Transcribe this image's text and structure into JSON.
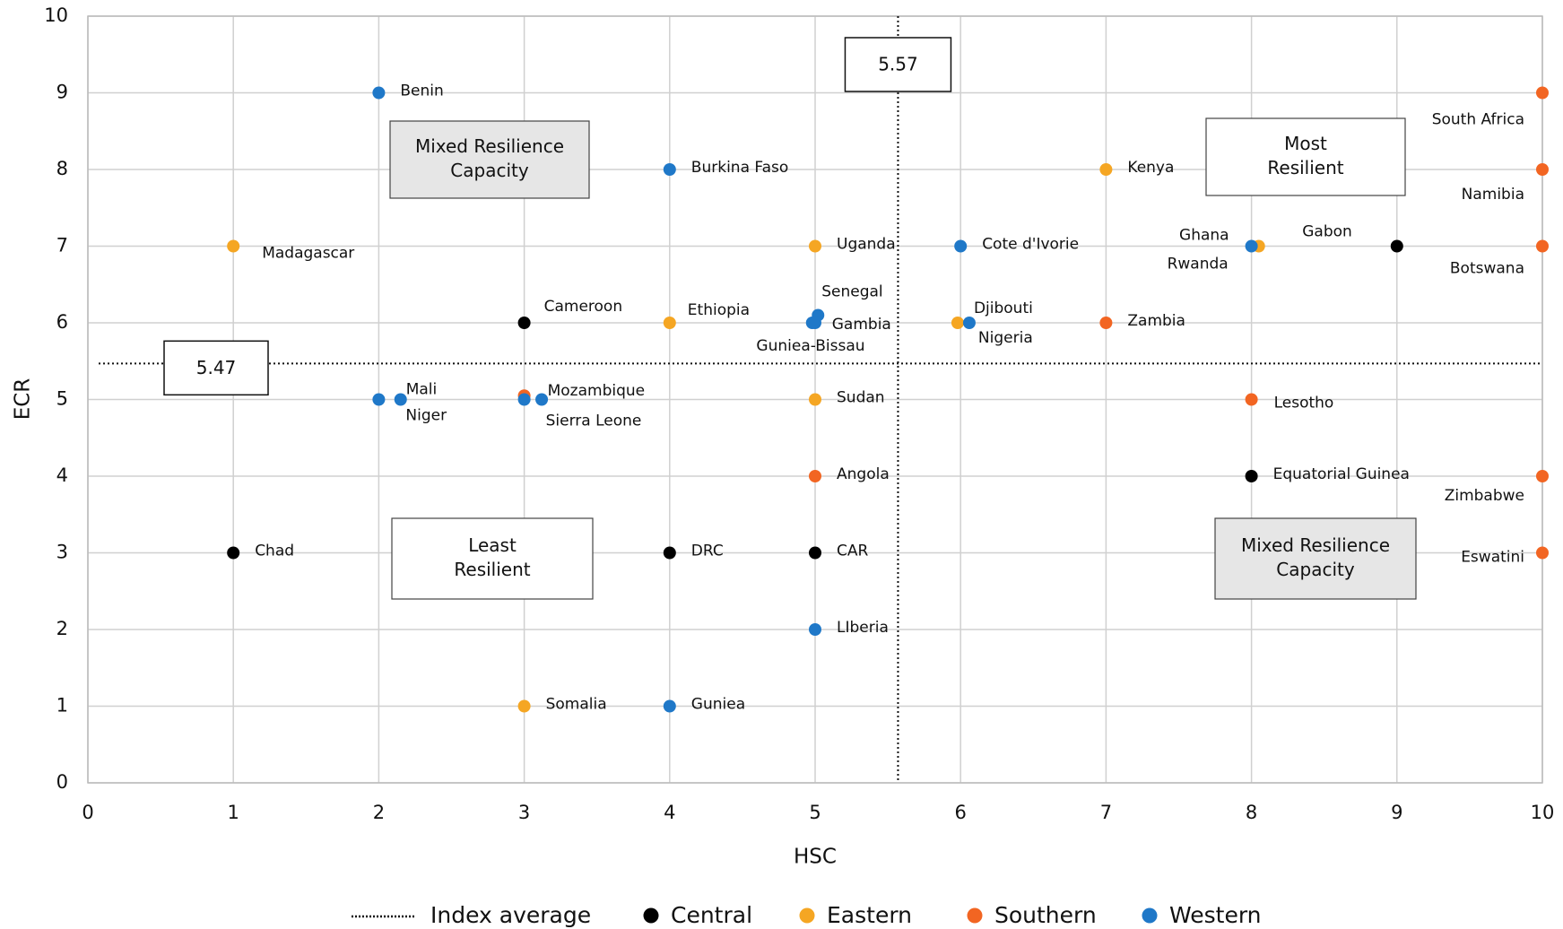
{
  "chart_data": {
    "type": "scatter",
    "xlabel": "HSC",
    "ylabel": "ECR",
    "xlim": [
      0,
      10
    ],
    "xticks": [
      0,
      1,
      2,
      3,
      4,
      5,
      6,
      7,
      8,
      9,
      10
    ],
    "ylim": [
      0,
      10
    ],
    "yticks": [
      0,
      1,
      2,
      3,
      4,
      5,
      6,
      7,
      8,
      9,
      10
    ],
    "grid": true,
    "reference_lines": {
      "name": "Index average",
      "x": 5.57,
      "y": 5.47
    },
    "series": [
      {
        "name": "Central",
        "color": "#000000",
        "x": [
          3,
          1,
          4,
          5,
          9,
          8
        ],
        "y": [
          6,
          3,
          3,
          3,
          7,
          4
        ],
        "labels": [
          "Cameroon",
          "Chad",
          "DRC",
          "CAR",
          "Gabon",
          "Equatorial Guinea"
        ]
      },
      {
        "name": "Eastern",
        "color": "#f5a623",
        "x": [
          1,
          5,
          4,
          7,
          5.98,
          5,
          3,
          8.05
        ],
        "y": [
          7,
          7,
          6,
          8,
          6,
          5,
          1,
          7
        ],
        "labels": [
          "Madagascar",
          "Uganda",
          "Ethiopia",
          "Kenya",
          "Djibouti",
          "Sudan",
          "Somalia",
          "Rwanda"
        ]
      },
      {
        "name": "Southern",
        "color": "#f26522",
        "x": [
          10,
          10,
          10,
          7,
          3,
          8,
          5,
          10,
          10
        ],
        "y": [
          9,
          8,
          7,
          6,
          5.05,
          5,
          4,
          4,
          3
        ],
        "labels": [
          "South Africa",
          "Namibia",
          "Botswana",
          "Zambia",
          "Mozambique",
          "Lesotho",
          "Angola",
          "Zimbabwe",
          "Eswatini"
        ]
      },
      {
        "name": "Western",
        "color": "#1f78c8",
        "x": [
          2,
          4,
          6,
          8,
          5.02,
          4.98,
          5,
          6.06,
          2.15,
          2,
          3,
          3.12,
          5,
          4
        ],
        "y": [
          9,
          8,
          7,
          7,
          6.1,
          6,
          6,
          6,
          5,
          5,
          5,
          5,
          2,
          1
        ],
        "labels": [
          "Benin",
          "Burkina Faso",
          "Cote d'Ivorie",
          "Ghana",
          "Senegal",
          "Gambia",
          "Guniea-Bissau",
          "Nigeria",
          "Mali",
          "Niger",
          "Sierra Leone",
          null,
          "LIberia",
          "Guniea"
        ]
      }
    ],
    "annotations": [
      {
        "lines": [
          "Mixed Resilience",
          "Capacity"
        ],
        "fill": "#e6e6e6"
      },
      {
        "lines": [
          "Most",
          "Resilient"
        ],
        "fill": "#ffffff"
      },
      {
        "lines": [
          "Least",
          "Resilient"
        ],
        "fill": "#ffffff"
      },
      {
        "lines": [
          "Mixed Resilience",
          "Capacity"
        ],
        "fill": "#e6e6e6"
      }
    ]
  }
}
